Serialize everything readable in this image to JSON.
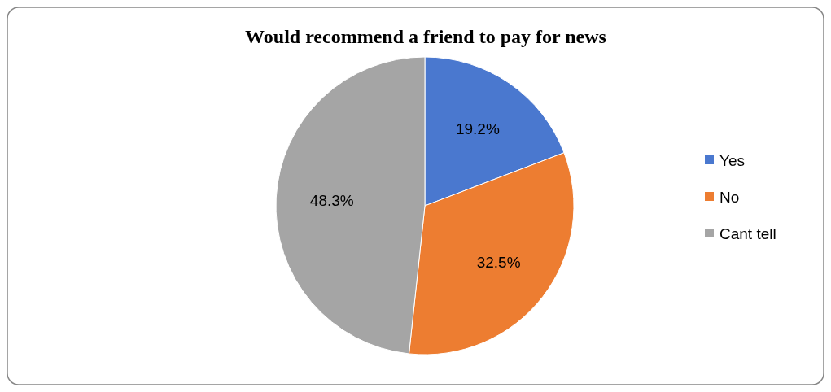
{
  "chart_data": {
    "type": "pie",
    "title": "Would recommend a friend to pay for news",
    "categories": [
      "Yes",
      "No",
      "Cant tell"
    ],
    "values": [
      19.2,
      32.5,
      48.3
    ],
    "colors": [
      "#4a78cf",
      "#ed7d31",
      "#a5a5a5"
    ],
    "value_labels": [
      "19.2%",
      "32.5%",
      "48.3%"
    ],
    "legend": "right"
  }
}
